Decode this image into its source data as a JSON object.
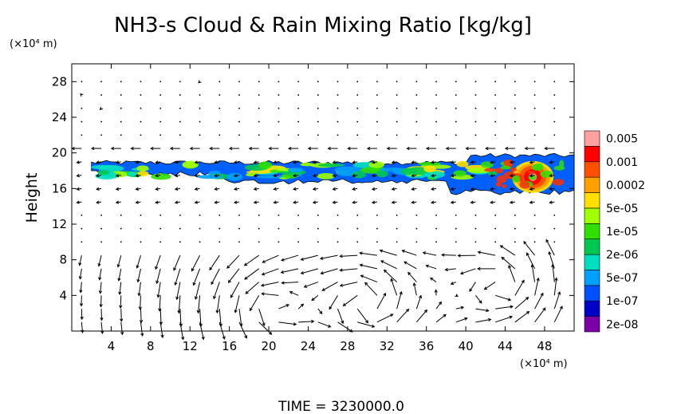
{
  "chart_data": {
    "type": "heatmap",
    "title": "NH3-s Cloud & Rain Mixing Ratio [kg/kg]",
    "ylabel": "Height",
    "xlabel": "",
    "x_unit": "(×10⁴ m)",
    "y_unit": "(×10⁴ m)",
    "xlim": [
      0,
      51
    ],
    "ylim": [
      0,
      30
    ],
    "x_ticks": [
      4,
      8,
      12,
      16,
      20,
      24,
      28,
      32,
      36,
      40,
      44,
      48
    ],
    "y_ticks": [
      4,
      8,
      12,
      16,
      20,
      24,
      28
    ],
    "grid": false,
    "colorbar": {
      "placement": "right",
      "colors": [
        "#7a00a8",
        "#0000c8",
        "#0050ff",
        "#00a0ff",
        "#00e0c0",
        "#00c850",
        "#30e000",
        "#a0ff00",
        "#ffe000",
        "#ffa000",
        "#ff5000",
        "#ff0000",
        "#ffa0a0"
      ],
      "labels": [
        "2e-08",
        "1e-07",
        "5e-07",
        "2e-06",
        "1e-05",
        "5e-05",
        "0.0002",
        "0.001",
        "0.005"
      ]
    },
    "cloud_layer": {
      "x_range": [
        2,
        51
      ],
      "y_range": [
        16,
        20
      ],
      "core": {
        "x_range": [
          44,
          49
        ],
        "y_range": [
          15.5,
          19.5
        ],
        "max_value": "0.005"
      }
    },
    "vector_field": "wind arrows throughout domain; strong circulations near surface at x≈18–24, 28–32, 40–48"
  },
  "footer": {
    "time_label": "TIME  =  3230000.0"
  }
}
